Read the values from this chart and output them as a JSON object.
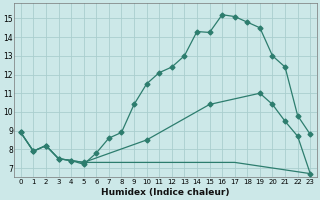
{
  "xlabel": "Humidex (Indice chaleur)",
  "background_color": "#cce8e8",
  "line_color": "#2d7d6e",
  "grid_color": "#aacece",
  "xlim": [
    -0.5,
    23.5
  ],
  "ylim": [
    6.5,
    15.8
  ],
  "yticks": [
    7,
    8,
    9,
    10,
    11,
    12,
    13,
    14,
    15
  ],
  "xticks": [
    0,
    1,
    2,
    3,
    4,
    5,
    6,
    7,
    8,
    9,
    10,
    11,
    12,
    13,
    14,
    15,
    16,
    17,
    18,
    19,
    20,
    21,
    22,
    23
  ],
  "line1_x": [
    0,
    1,
    2,
    3,
    4,
    5,
    6,
    7,
    8,
    9,
    10,
    11,
    12,
    13,
    14,
    15,
    16,
    17,
    18,
    19,
    20,
    21,
    22,
    23
  ],
  "line1_y": [
    8.9,
    7.9,
    8.2,
    7.5,
    7.4,
    7.2,
    7.8,
    8.6,
    8.9,
    10.4,
    11.5,
    12.1,
    12.4,
    13.0,
    14.3,
    14.25,
    15.2,
    15.1,
    14.8,
    14.5,
    13.0,
    12.4,
    9.8,
    8.8
  ],
  "line2_x": [
    0,
    1,
    2,
    3,
    4,
    5,
    6,
    7,
    8,
    9,
    10,
    11,
    12,
    13,
    14,
    15,
    16,
    17,
    18,
    19,
    20,
    21,
    22,
    23
  ],
  "line2_y": [
    8.9,
    7.9,
    8.2,
    7.5,
    7.4,
    7.3,
    7.3,
    7.3,
    7.3,
    7.3,
    7.3,
    7.3,
    7.3,
    7.3,
    7.3,
    7.3,
    7.3,
    7.3,
    7.2,
    7.1,
    7.0,
    6.9,
    6.8,
    6.7
  ],
  "line3_x": [
    0,
    1,
    2,
    3,
    4,
    5,
    10,
    15,
    19,
    20,
    21,
    22,
    23
  ],
  "line3_y": [
    8.9,
    7.9,
    8.2,
    7.5,
    7.4,
    7.3,
    8.5,
    10.4,
    11.0,
    10.4,
    9.5,
    8.7,
    6.7
  ],
  "markersize": 2.5
}
